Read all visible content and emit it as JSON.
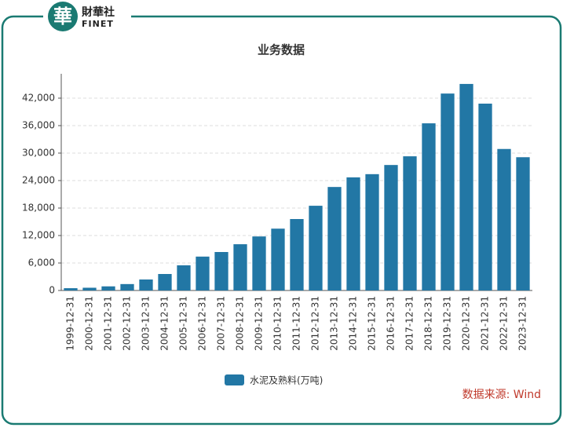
{
  "logo": {
    "mark": "華",
    "name": "財華社",
    "name_en": "FINET"
  },
  "source": "数据来源: Wind",
  "chart_data": {
    "type": "bar",
    "title": "业务数据",
    "categories": [
      "1999-12-31",
      "2000-12-31",
      "2001-12-31",
      "2002-12-31",
      "2003-12-31",
      "2004-12-31",
      "2005-12-31",
      "2006-12-31",
      "2007-12-31",
      "2008-12-31",
      "2009-12-31",
      "2010-12-31",
      "2011-12-31",
      "2012-12-31",
      "2013-12-31",
      "2014-12-31",
      "2015-12-31",
      "2016-12-31",
      "2017-12-31",
      "2018-12-31",
      "2019-12-31",
      "2020-12-31",
      "2021-12-31",
      "2022-12-31",
      "2023-12-31"
    ],
    "series": [
      {
        "name": "水泥及熟料(万吨)",
        "color": "#2277a5",
        "values": [
          500,
          600,
          900,
          1400,
          2400,
          3600,
          5500,
          7400,
          8400,
          10100,
          11800,
          13500,
          15600,
          18500,
          22600,
          24700,
          25400,
          27400,
          29300,
          36500,
          43000,
          45100,
          40800,
          30900,
          29100
        ]
      }
    ],
    "ylim": [
      0,
      48000
    ],
    "yticks": [
      0,
      {
        "value": 6000,
        "label": "6,000"
      },
      {
        "value": 12000,
        "label": "12,000"
      },
      {
        "value": 18000,
        "label": "18,000"
      },
      {
        "value": 24000,
        "label": "24,000"
      },
      {
        "value": 30000,
        "label": "30,000"
      },
      {
        "value": 36000,
        "label": "36,000"
      },
      {
        "value": 42000,
        "label": "42,000"
      }
    ],
    "grid": true,
    "legend": "bottom"
  }
}
